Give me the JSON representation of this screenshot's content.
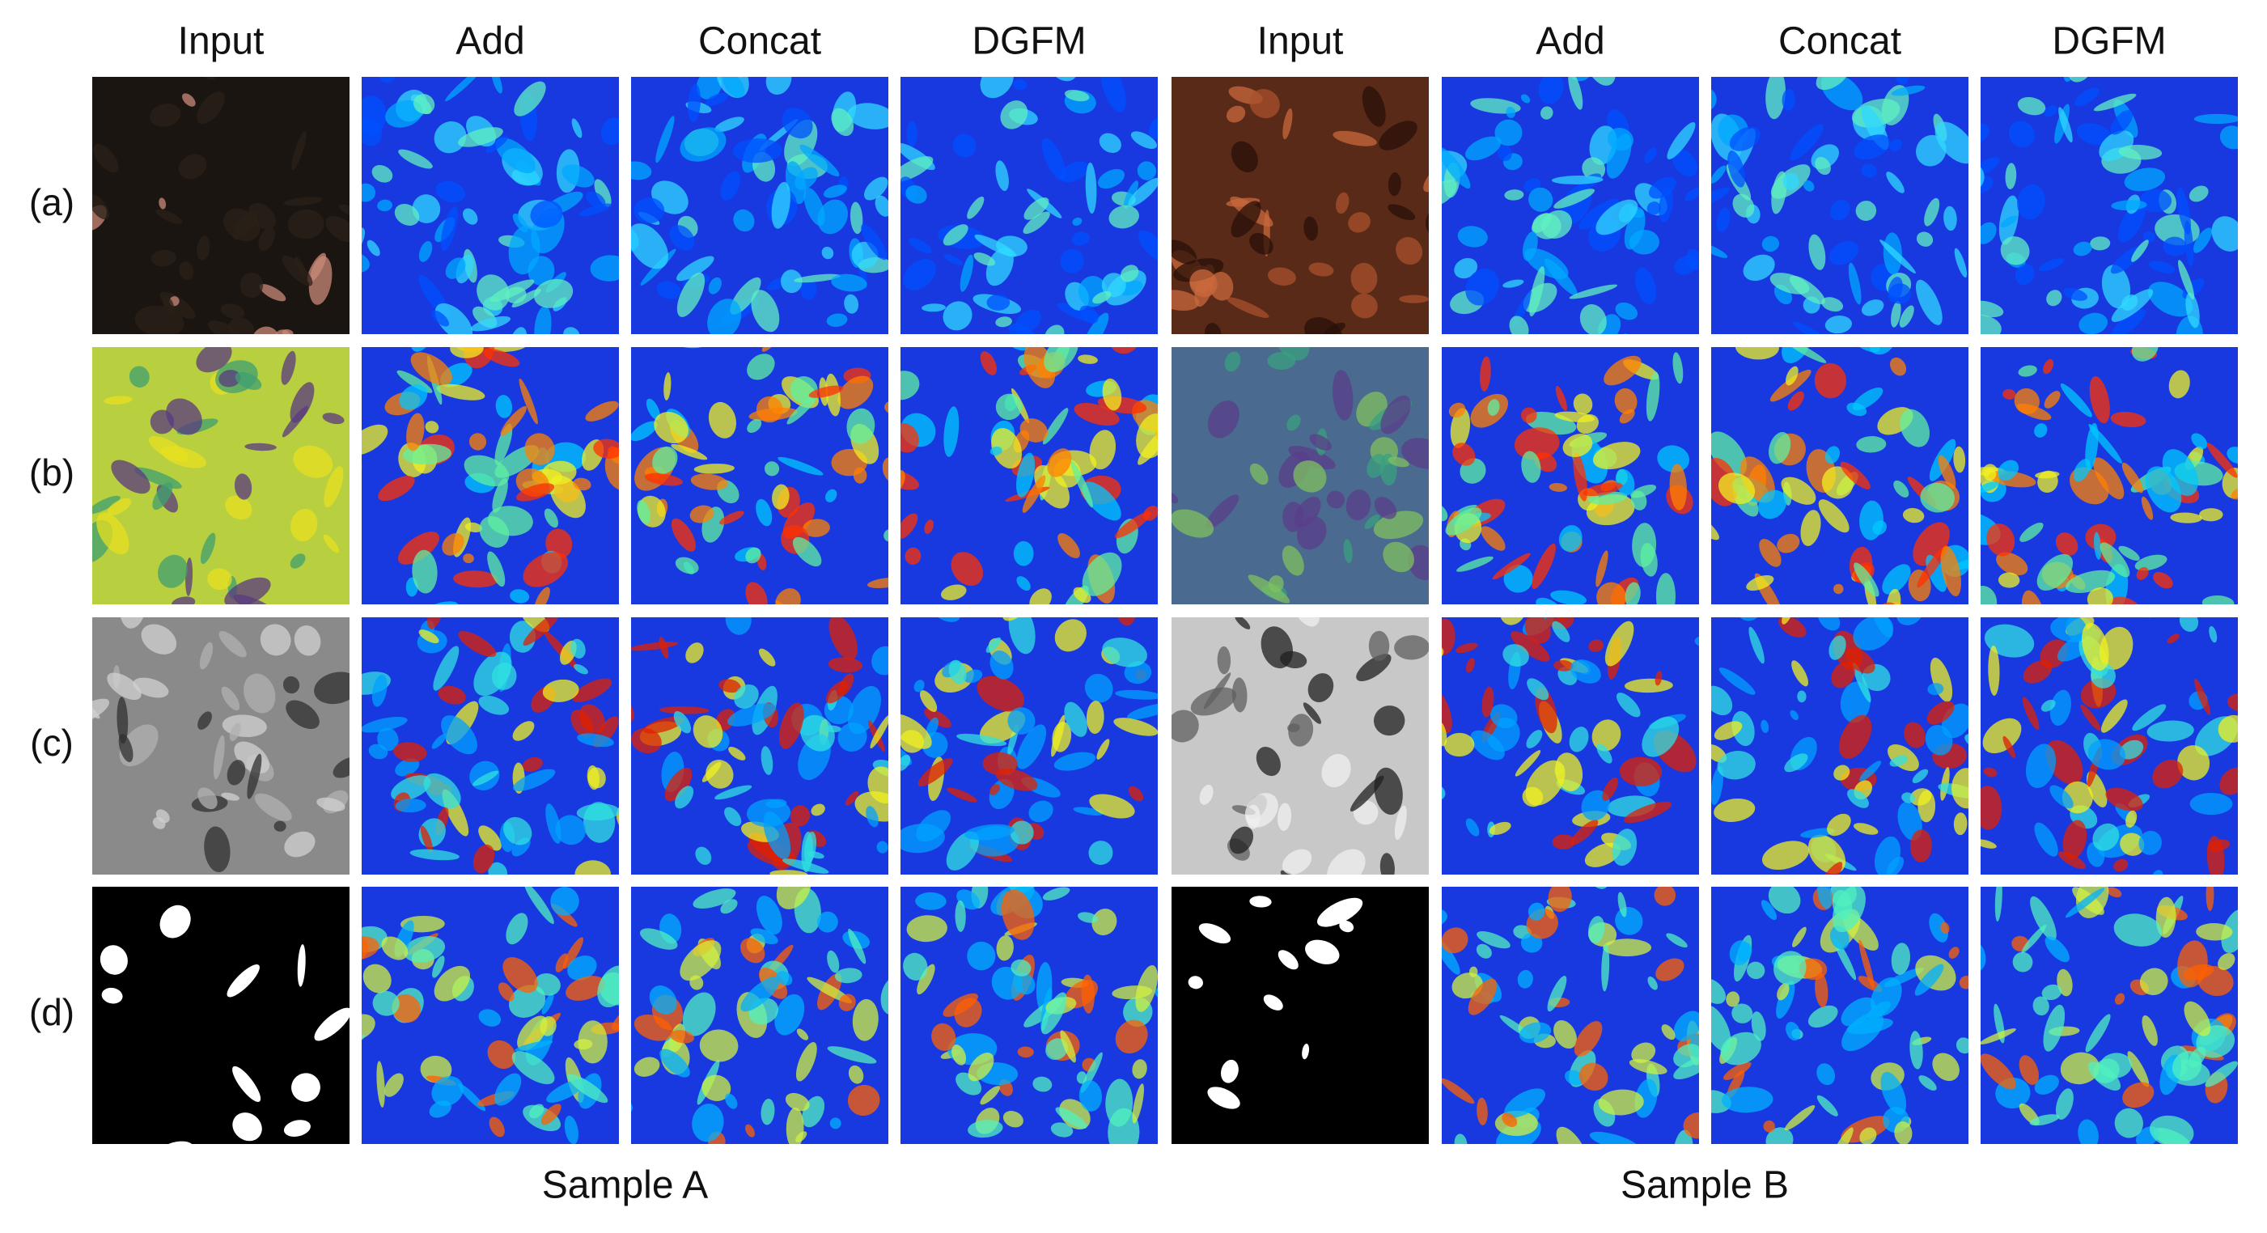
{
  "columns": [
    "Input",
    "Add",
    "Concat",
    "DGFM",
    "Input",
    "Add",
    "Concat",
    "DGFM"
  ],
  "rows": [
    "(a)",
    "(b)",
    "(c)",
    "(d)"
  ],
  "samples": [
    "Sample A",
    "Sample B"
  ]
}
